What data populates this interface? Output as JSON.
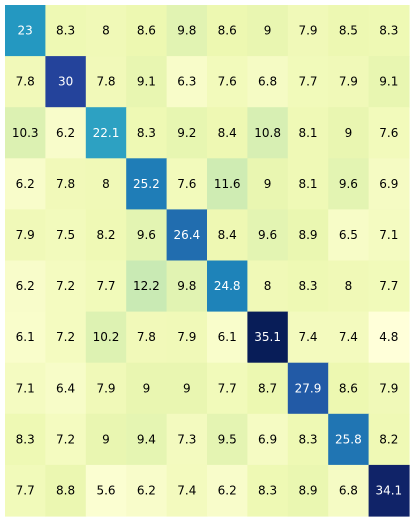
{
  "chart_data": {
    "type": "heatmap",
    "title": "",
    "xlabel": "",
    "ylabel": "",
    "colormap": "YlGnBu",
    "colors": {
      "low": "#ffffd9",
      "high": "#081d58",
      "light_text": "#ffffff",
      "dark_text": "#000000",
      "background": "#ffffff"
    },
    "value_range": [
      4.8,
      35.1
    ],
    "values": [
      [
        23,
        8.3,
        8,
        8.6,
        9.8,
        8.6,
        9,
        7.9,
        8.5,
        8.3
      ],
      [
        7.8,
        30,
        7.8,
        9.1,
        6.3,
        7.6,
        6.8,
        7.7,
        7.9,
        9.1
      ],
      [
        10.3,
        6.2,
        22.1,
        8.3,
        9.2,
        8.4,
        10.8,
        8.1,
        9,
        7.6
      ],
      [
        6.2,
        7.8,
        8,
        25.2,
        7.6,
        11.6,
        9,
        8.1,
        9.6,
        6.9
      ],
      [
        7.9,
        7.5,
        8.2,
        9.6,
        26.4,
        8.4,
        9.6,
        8.9,
        6.5,
        7.1
      ],
      [
        6.2,
        7.2,
        7.7,
        12.2,
        9.8,
        24.8,
        8,
        8.3,
        8,
        7.7
      ],
      [
        6.1,
        7.2,
        10.2,
        7.8,
        7.9,
        6.1,
        35.1,
        7.4,
        7.4,
        4.8
      ],
      [
        7.1,
        6.4,
        7.9,
        9,
        9,
        7.7,
        8.7,
        27.9,
        8.6,
        7.9
      ],
      [
        8.3,
        7.2,
        9,
        9.4,
        7.3,
        9.5,
        6.9,
        8.3,
        25.8,
        8.2
      ],
      [
        7.7,
        8.8,
        5.6,
        6.2,
        7.4,
        6.2,
        8.3,
        8.9,
        6.8,
        34.1
      ]
    ]
  }
}
